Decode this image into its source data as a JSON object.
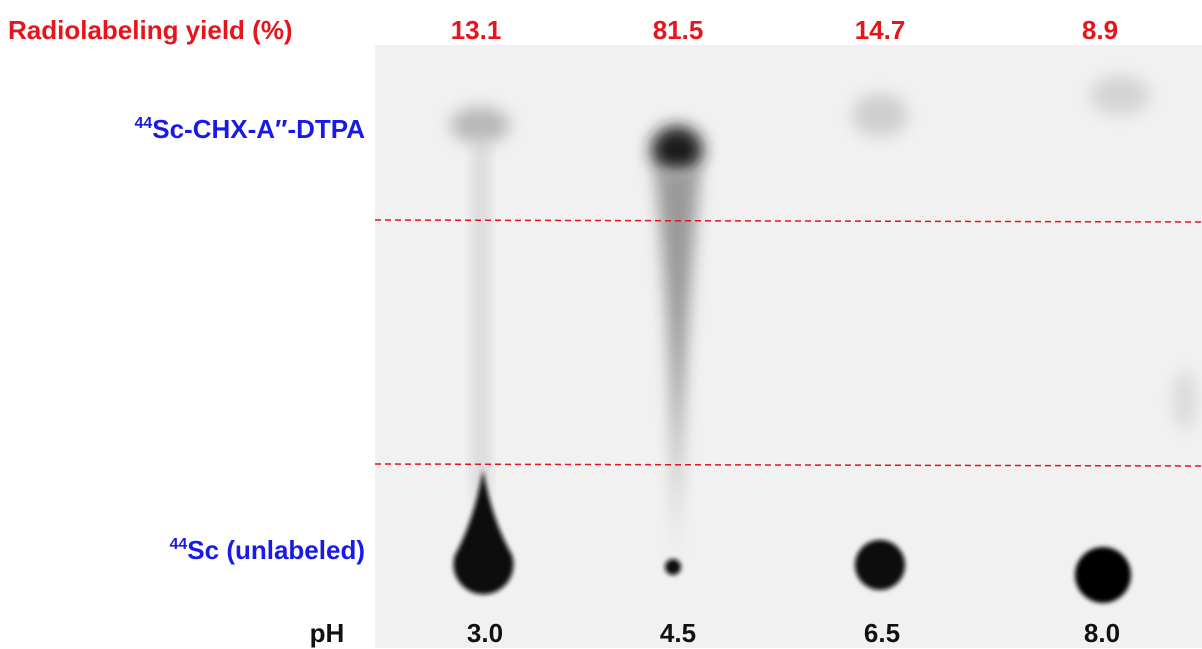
{
  "header": {
    "label": "Radiolabeling yield (%)",
    "yields": [
      "13.1",
      "81.5",
      "14.7",
      "8.9"
    ]
  },
  "bands": [
    {
      "superscript": "44",
      "label": "Sc-CHX-A″-DTPA"
    },
    {
      "superscript": "44",
      "label": "Sc (unlabeled)"
    }
  ],
  "footer": {
    "label": "pH",
    "values": [
      "3.0",
      "4.5",
      "6.5",
      "8.0"
    ]
  }
}
